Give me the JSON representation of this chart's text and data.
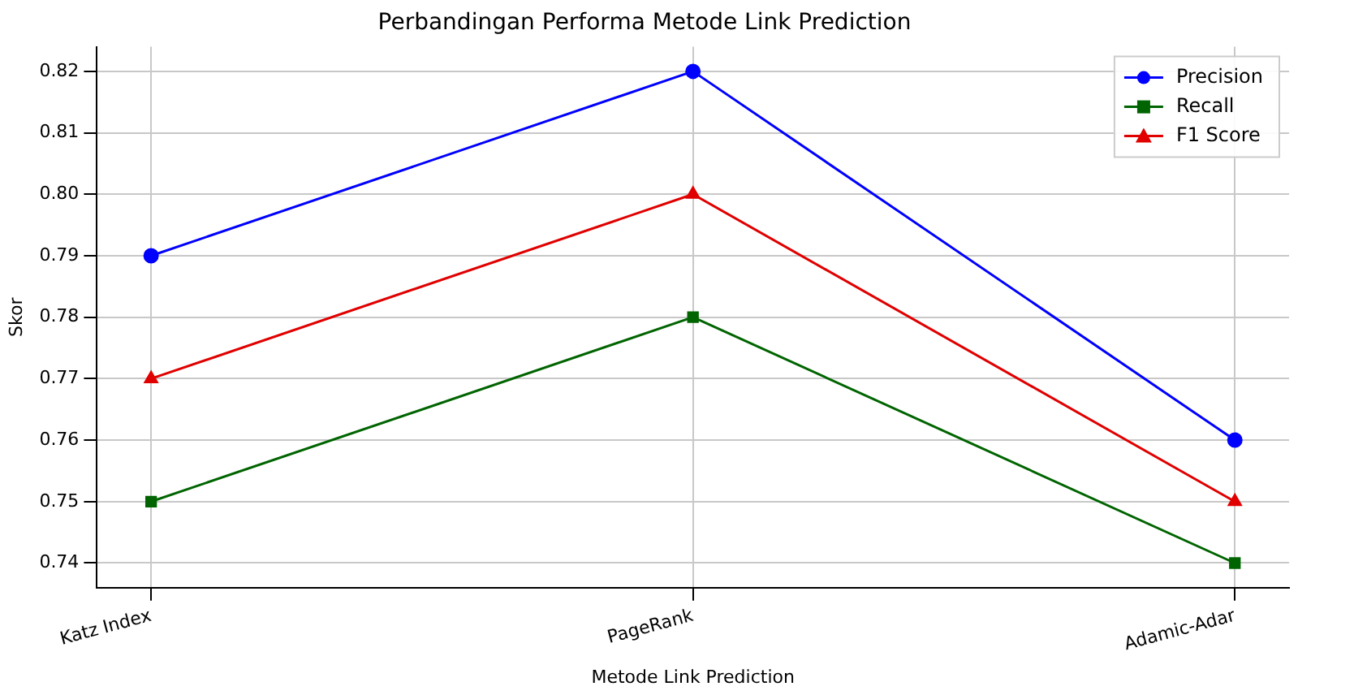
{
  "chart_data": {
    "type": "line",
    "title": "Perbandingan Performa Metode Link Prediction",
    "xlabel": "Metode Link Prediction",
    "ylabel": "Skor",
    "categories": [
      "Katz Index",
      "PageRank",
      "Adamic-Adar"
    ],
    "series": [
      {
        "name": "Precision",
        "color": "#0000ff",
        "marker": "circle",
        "values": [
          0.79,
          0.82,
          0.76
        ]
      },
      {
        "name": "Recall",
        "color": "#006400",
        "marker": "square",
        "values": [
          0.75,
          0.78,
          0.74
        ]
      },
      {
        "name": "F1 Score",
        "color": "#e00000",
        "marker": "triangle",
        "values": [
          0.77,
          0.8,
          0.75
        ]
      }
    ],
    "ylim": [
      0.736,
      0.824
    ],
    "yticks": [
      0.74,
      0.75,
      0.76,
      0.77,
      0.78,
      0.79,
      {
        "value": 0.8,
        "label": "0.80"
      },
      0.81,
      0.82
    ],
    "grid": true,
    "legend": "top right",
    "line_style": "solid"
  }
}
